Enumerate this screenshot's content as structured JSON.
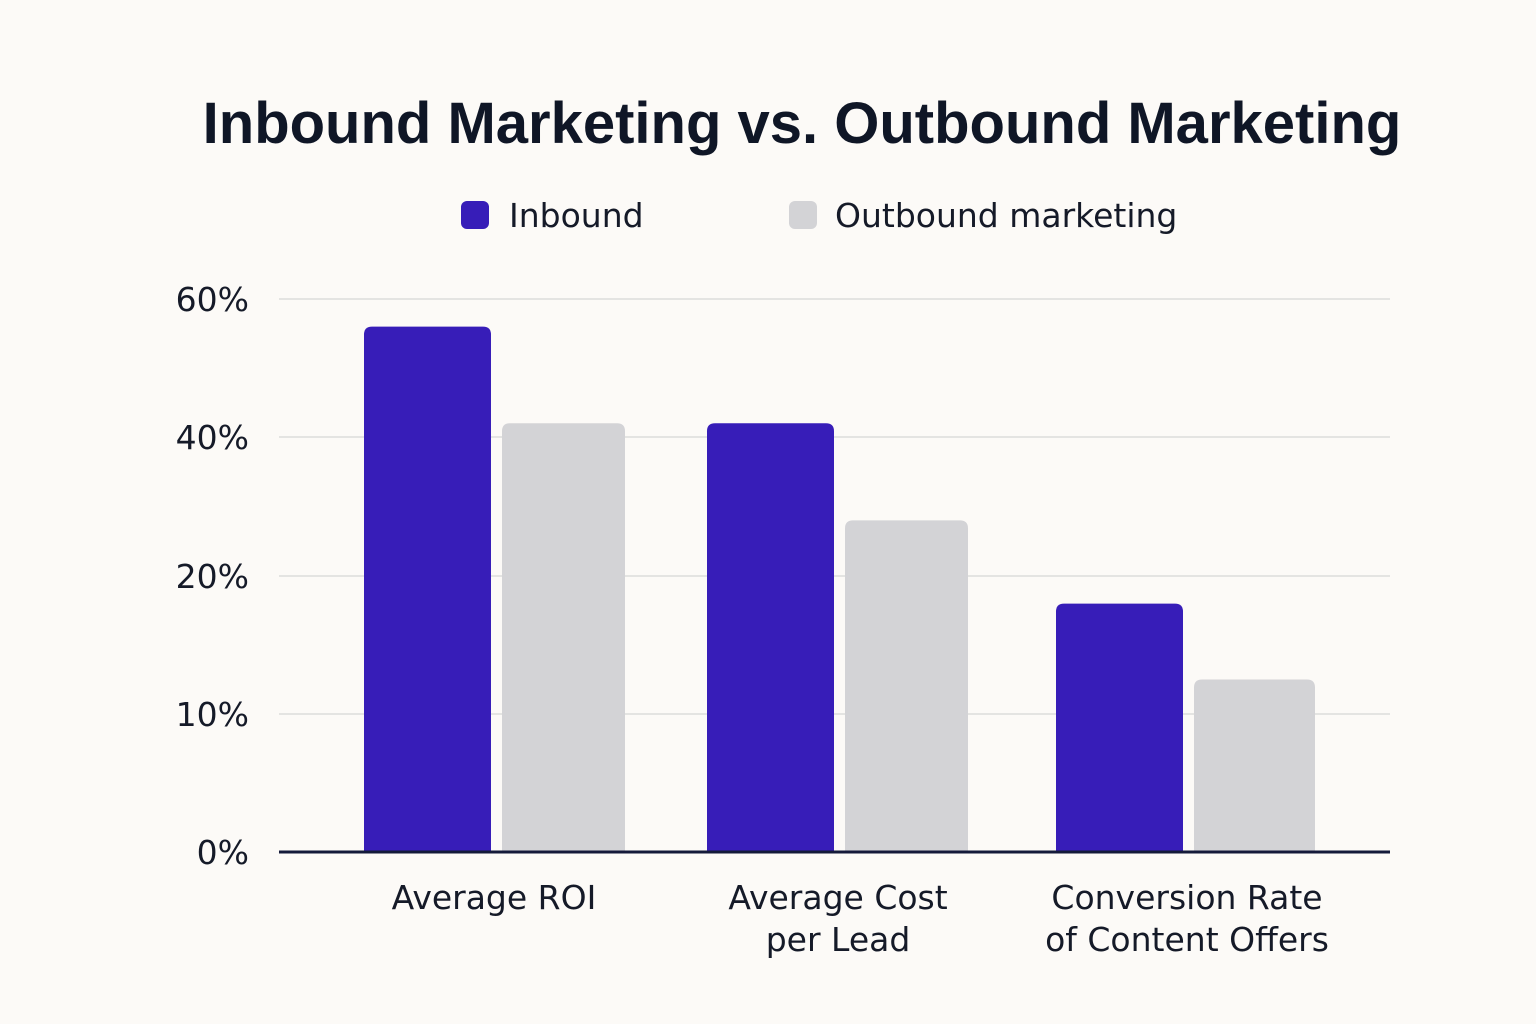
{
  "chart_data": {
    "type": "bar",
    "title": "Inbound Marketing vs. Outbound Marketing",
    "categories": [
      [
        "Average ROI"
      ],
      [
        "Average Cost",
        "per Lead"
      ],
      [
        "Conversion Rate",
        "of Content Offers"
      ]
    ],
    "series": [
      {
        "name": "Inbound",
        "values": [
          56,
          42,
          18
        ],
        "color": "#371db8"
      },
      {
        "name": "Outbound marketing",
        "values": [
          42,
          28,
          12.5
        ],
        "color": "#d3d3d6"
      }
    ],
    "y_ticks": [
      {
        "value": 0,
        "label": "0%"
      },
      {
        "value": 10,
        "label": "10%"
      },
      {
        "value": 20,
        "label": "20%"
      },
      {
        "value": 40,
        "label": "40%"
      },
      {
        "value": 60,
        "label": "60%"
      }
    ],
    "ylim": [
      0,
      60
    ],
    "grid": true,
    "legend_position": "top-center"
  }
}
